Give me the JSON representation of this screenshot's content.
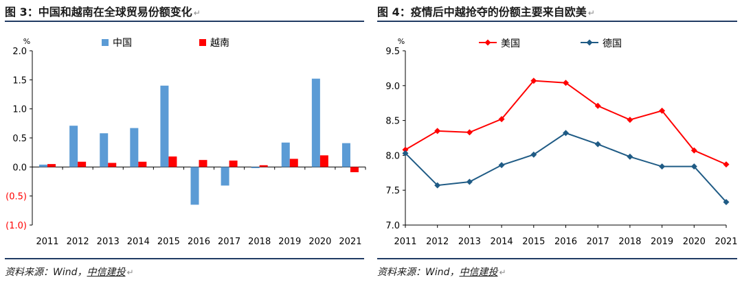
{
  "figures": [
    {
      "title": "图 3：中国和越南在全球贸易份额变化",
      "source_prefix": "资料来源：Wind，",
      "source_brand": "中信建投"
    },
    {
      "title": "图 4：疫情后中越抢夺的份额主要来自欧美",
      "source_prefix": "资料来源：Wind，",
      "source_brand": "中信建投"
    }
  ],
  "chart_data": [
    {
      "type": "bar",
      "title": "图 3：中国和越南在全球贸易份额变化",
      "unit": "%",
      "categories": [
        "2011",
        "2012",
        "2013",
        "2014",
        "2015",
        "2016",
        "2017",
        "2018",
        "2019",
        "2020",
        "2021"
      ],
      "series": [
        {
          "name": "中国",
          "color": "#5b9bd5",
          "values": [
            0.04,
            0.71,
            0.58,
            0.67,
            1.4,
            -0.65,
            -0.32,
            -0.02,
            0.42,
            1.52,
            0.41
          ]
        },
        {
          "name": "越南",
          "color": "#ff0000",
          "values": [
            0.05,
            0.09,
            0.07,
            0.09,
            0.18,
            0.12,
            0.11,
            0.03,
            0.14,
            0.2,
            -0.09
          ]
        }
      ],
      "ylim": [
        -1.0,
        2.0
      ],
      "yticks": [
        2.0,
        1.5,
        1.0,
        0.5,
        0.0,
        -0.5,
        -1.0
      ],
      "ytick_labels": [
        "2.0",
        "1.5",
        "1.0",
        "0.5",
        "0.0",
        "(0.5)",
        "(1.0)"
      ],
      "negative_label_color": "#ff0000",
      "legend_position": "top",
      "grid": false
    },
    {
      "type": "line",
      "title": "图 4：疫情后中越抢夺的份额主要来自欧美",
      "unit": "%",
      "categories": [
        "2011",
        "2012",
        "2013",
        "2014",
        "2015",
        "2016",
        "2017",
        "2018",
        "2019",
        "2020",
        "2021"
      ],
      "series": [
        {
          "name": "美国",
          "color": "#ff0000",
          "marker": "diamond",
          "values": [
            8.08,
            8.35,
            8.33,
            8.52,
            9.07,
            9.04,
            8.71,
            8.51,
            8.64,
            8.07,
            7.87
          ]
        },
        {
          "name": "德国",
          "color": "#1f5b85",
          "marker": "diamond",
          "values": [
            8.03,
            7.57,
            7.62,
            7.86,
            8.01,
            8.32,
            8.16,
            7.98,
            7.84,
            7.84,
            7.33
          ]
        }
      ],
      "ylim": [
        7.0,
        9.5
      ],
      "yticks": [
        9.5,
        9.0,
        8.5,
        8.0,
        7.5,
        7.0
      ],
      "ytick_labels": [
        "9.5",
        "9.0",
        "8.5",
        "8.0",
        "7.5",
        "7.0"
      ],
      "legend_position": "top",
      "grid": false
    }
  ]
}
